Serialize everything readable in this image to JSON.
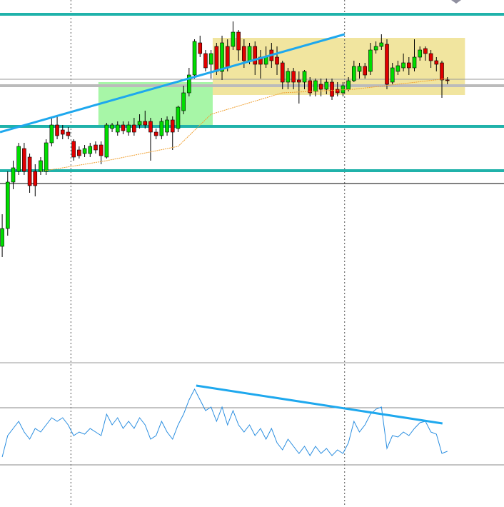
{
  "chart_data": {
    "type": "candlestick",
    "xlim": [
      -0.4,
      91.3
    ],
    "ylim": [
      0,
      505
    ],
    "open": [
      160,
      185,
      250,
      265,
      297,
      285,
      265,
      265,
      265,
      305,
      330,
      323,
      320,
      307,
      295,
      290,
      290,
      302,
      302,
      285,
      325,
      320,
      330,
      320,
      330,
      330,
      335,
      335,
      320,
      315,
      320,
      337,
      325,
      350,
      375,
      400,
      445,
      430,
      415,
      440,
      405,
      440,
      440,
      460,
      440,
      420,
      440,
      425,
      415,
      435,
      425,
      417,
      390,
      405,
      393,
      390,
      392,
      377,
      387,
      380,
      390,
      380,
      375,
      380,
      392,
      405,
      412,
      405,
      435,
      440,
      443,
      390,
      405,
      410,
      417,
      410,
      425,
      437,
      430,
      420,
      417,
      393
    ],
    "high": [
      205,
      265,
      280,
      305,
      305,
      290,
      275,
      285,
      310,
      340,
      342,
      330,
      327,
      310,
      300,
      302,
      305,
      307,
      307,
      333,
      333,
      335,
      335,
      335,
      340,
      345,
      350,
      340,
      325,
      340,
      342,
      342,
      357,
      385,
      410,
      450,
      455,
      435,
      435,
      445,
      455,
      450,
      475,
      463,
      450,
      445,
      447,
      435,
      440,
      445,
      440,
      420,
      410,
      410,
      405,
      407,
      397,
      395,
      395,
      395,
      395,
      390,
      390,
      397,
      420,
      417,
      417,
      445,
      447,
      457,
      450,
      417,
      420,
      430,
      425,
      450,
      440,
      440,
      435,
      425,
      420,
      397
    ],
    "low": [
      145,
      175,
      240,
      260,
      260,
      235,
      230,
      260,
      260,
      300,
      310,
      310,
      310,
      280,
      283,
      285,
      285,
      290,
      275,
      283,
      320,
      315,
      317,
      315,
      315,
      325,
      325,
      280,
      310,
      310,
      315,
      295,
      320,
      345,
      370,
      395,
      425,
      405,
      395,
      400,
      393,
      405,
      435,
      420,
      410,
      415,
      400,
      395,
      410,
      410,
      400,
      380,
      380,
      380,
      360,
      380,
      370,
      370,
      370,
      373,
      365,
      370,
      370,
      377,
      390,
      395,
      395,
      400,
      430,
      435,
      380,
      387,
      400,
      405,
      400,
      405,
      420,
      420,
      410,
      405,
      368,
      387
    ],
    "close": [
      185,
      250,
      270,
      300,
      265,
      245,
      245,
      280,
      305,
      330,
      315,
      317,
      315,
      285,
      287,
      297,
      300,
      295,
      287,
      330,
      330,
      330,
      322,
      330,
      320,
      335,
      330,
      320,
      315,
      335,
      337,
      320,
      355,
      375,
      400,
      447,
      430,
      410,
      430,
      405,
      445,
      410,
      460,
      435,
      420,
      440,
      415,
      415,
      425,
      420,
      415,
      390,
      405,
      390,
      390,
      405,
      375,
      392,
      380,
      390,
      370,
      375,
      385,
      392,
      412,
      412,
      400,
      435,
      440,
      445,
      387,
      410,
      413,
      417,
      410,
      425,
      435,
      430,
      420,
      415,
      393,
      392
    ],
    "up_color": "#00dd00",
    "down_color": "#e00000",
    "moving_average": {
      "color": "#f0a030",
      "x": [
        7,
        19,
        32,
        38,
        51,
        64,
        81
      ],
      "values": [
        265,
        280,
        300,
        345,
        375,
        380,
        395
      ]
    },
    "levels": [
      {
        "value": 485,
        "color": "#20b2aa",
        "width": 4
      },
      {
        "value": 394,
        "color": "#999999",
        "width": 1
      },
      {
        "value": 385,
        "color": "#bbbbbb",
        "width": 4
      },
      {
        "value": 328,
        "color": "#20b2aa",
        "width": 4
      },
      {
        "value": 266,
        "color": "#20b2aa",
        "width": 4
      },
      {
        "value": 248,
        "color": "#000000",
        "width": 1
      }
    ],
    "zones": [
      {
        "x": [
          17.5,
          38.3
        ],
        "values": [
          328,
          390
        ],
        "color": "#98f598"
      },
      {
        "x": [
          38.3,
          84.2
        ],
        "values": [
          372,
          452
        ],
        "color": "#efe08e"
      }
    ],
    "trendline": {
      "x": [
        -0.4,
        62.3
      ],
      "values": [
        320,
        457
      ],
      "color": "#1ea8ee"
    },
    "vlines": [
      12.5,
      62.3
    ],
    "oscillator": {
      "ylim": [
        0,
        100
      ],
      "levels": [
        30,
        70
      ],
      "color": "#2a8ee0",
      "values": [
        35.5,
        50.5,
        55.5,
        60.5,
        53,
        48,
        55.5,
        53,
        58,
        63,
        60.5,
        63,
        58,
        50.5,
        53,
        51.5,
        55.5,
        53,
        50.5,
        65.5,
        58,
        63,
        55.5,
        60.5,
        55.5,
        63,
        58,
        48,
        50.5,
        60.5,
        53,
        48,
        58,
        65.5,
        75.5,
        83,
        75.5,
        68,
        70.5,
        60.5,
        70.5,
        58,
        68,
        58,
        53,
        58,
        50.5,
        55.5,
        48,
        55.5,
        45.5,
        40.5,
        48,
        43,
        38,
        43,
        36.5,
        43,
        38,
        41.5,
        36.5,
        40.5,
        38,
        45.5,
        60.5,
        53,
        58,
        65.5,
        69,
        70.5,
        41.5,
        50.5,
        49.5,
        53,
        50.5,
        55.5,
        59.5,
        60.5,
        53,
        51.5,
        38,
        39.5
      ],
      "trendline": {
        "x": [
          35.3,
          80.1
        ],
        "values": [
          85.5,
          59
        ],
        "color": "#1ea8ee"
      }
    }
  }
}
